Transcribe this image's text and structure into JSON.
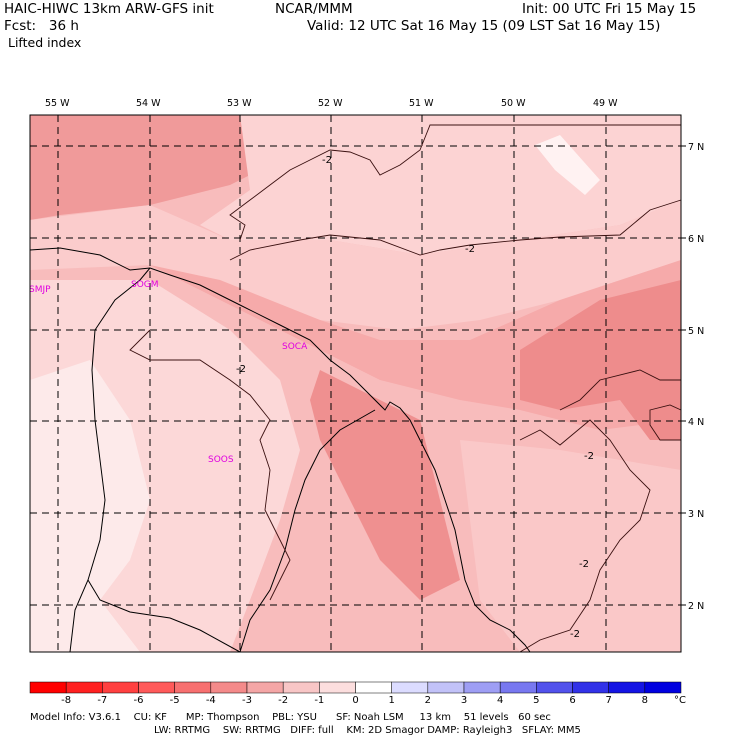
{
  "header": {
    "left_line1": "HAIC-HIWC 13km ARW-GFS init",
    "center_line1": "NCAR/MMM",
    "right_line1": "Init: 00 UTC Fri 15 May 15",
    "left_line2": "Fcst:   36 h",
    "right_line2": "Valid: 12 UTC Sat 16 May 15 (09 LST Sat 16 May 15)",
    "field_name": "Lifted index"
  },
  "map": {
    "lon_labels": [
      "55 W",
      "54 W",
      "53 W",
      "52 W",
      "51 W",
      "50 W",
      "49 W"
    ],
    "lat_labels": [
      "7 N",
      "6 N",
      "5 N",
      "4 N",
      "3 N",
      "2 N"
    ],
    "stations": [
      "SMJP",
      "SOGM",
      "SOCA",
      "SOOS"
    ],
    "contour_label": "-2",
    "colors": {
      "very_light": "#fdeaea",
      "light": "#fcd6d6",
      "medium": "#f8bcbc",
      "medium_dark": "#f4a0a0",
      "dark": "#ee8080",
      "border": "#000000",
      "station_text": "#e000e0"
    }
  },
  "colorbar": {
    "labels": [
      "-8",
      "-7",
      "-6",
      "-5",
      "-4",
      "-3",
      "-2",
      "-1",
      "0",
      "1",
      "2",
      "3",
      "4",
      "5",
      "6",
      "7",
      "8"
    ],
    "unit": "°C",
    "colors": [
      "#ff0000",
      "#ff2020",
      "#ff4040",
      "#ff5a5a",
      "#f77070",
      "#f48a8a",
      "#f4a6a6",
      "#f8c6c6",
      "#fcdede",
      "#ffffff",
      "#dcdcff",
      "#c2c2f8",
      "#9e9ef4",
      "#7878f0",
      "#5252ec",
      "#3232e8",
      "#1414e4",
      "#0000e0"
    ]
  },
  "footer": {
    "line1": "Model Info: V3.6.1    CU: KF      MP: Thompson    PBL: YSU      SF: Noah LSM     13 km    51 levels   60 sec",
    "line2": "LW: RRTMG    SW: RRTMG   DIFF: full    KM: 2D Smagor DAMP: Rayleigh3   SFLAY: MM5"
  }
}
